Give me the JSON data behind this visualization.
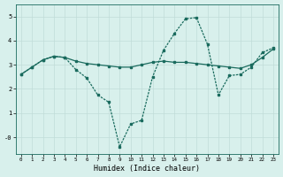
{
  "xlabel": "Humidex (Indice chaleur)",
  "bg_color": "#d8f0ec",
  "line_color": "#1a6b5e",
  "grid_color": "#c0dcd8",
  "xlim": [
    -0.5,
    23.5
  ],
  "ylim": [
    -0.7,
    5.5
  ],
  "xticks": [
    0,
    1,
    2,
    3,
    4,
    5,
    6,
    7,
    8,
    9,
    10,
    11,
    12,
    13,
    14,
    15,
    16,
    17,
    18,
    19,
    20,
    21,
    22,
    23
  ],
  "yticks": [
    0,
    1,
    2,
    3,
    4,
    5
  ],
  "ytick_labels": [
    "-0",
    "1",
    "2",
    "3",
    "4",
    "5"
  ],
  "line1_x": [
    0,
    1,
    2,
    3,
    4,
    5,
    6,
    7,
    8,
    9,
    10,
    11,
    12,
    13,
    14,
    15,
    16,
    17,
    18,
    19,
    20,
    21,
    22,
    23
  ],
  "line1_y": [
    2.6,
    2.9,
    3.2,
    3.35,
    3.3,
    3.15,
    3.05,
    3.0,
    2.95,
    2.9,
    2.9,
    3.0,
    3.1,
    3.15,
    3.1,
    3.1,
    3.05,
    3.0,
    2.95,
    2.9,
    2.85,
    3.0,
    3.3,
    3.65
  ],
  "line2_x": [
    0,
    1,
    2,
    3,
    4,
    5,
    6,
    7,
    8,
    9,
    10,
    11,
    12,
    13,
    14,
    15,
    16,
    17,
    18,
    19,
    20,
    21,
    22,
    23
  ],
  "line2_y": [
    2.6,
    2.9,
    3.2,
    3.35,
    3.3,
    2.8,
    2.45,
    1.75,
    1.45,
    -0.4,
    0.55,
    0.7,
    2.5,
    3.6,
    4.3,
    4.9,
    4.95,
    3.85,
    1.75,
    2.55,
    2.6,
    2.9,
    3.5,
    3.7
  ]
}
